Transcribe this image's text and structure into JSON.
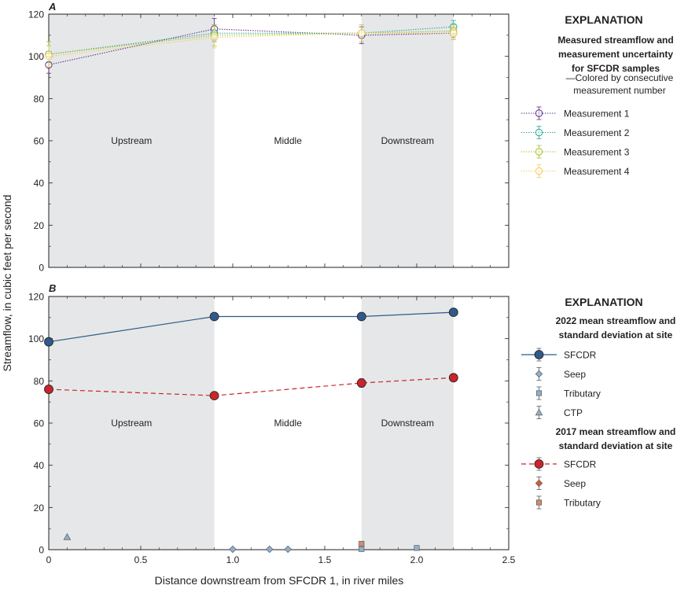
{
  "figure": {
    "ylabel": "Streamflow, in cubic feet per second",
    "xlabel": "Distance downstream from SFCDR 1, in river miles"
  },
  "colors": {
    "region_shade": "#e6e7e8",
    "m1": "#5b2c83",
    "m2": "#2aa698",
    "m3": "#a3be2d",
    "m4": "#f2cd5b",
    "sfcdr2022": "#2f5a8a",
    "seep2022": "#8fb0cc",
    "trib2022": "#8fb0cc",
    "ctp2022": "#8fb0cc",
    "sfcdr2017": "#c9252b",
    "seep2017": "#d35a3c",
    "trib2017": "#d38a6e"
  },
  "chart_data": [
    {
      "panel": "A",
      "type": "line",
      "xlim": [
        0,
        2.5
      ],
      "ylim": [
        0,
        120
      ],
      "xticks": [
        0,
        0.5,
        1.0,
        1.5,
        2.0,
        2.5
      ],
      "xtick_labels": [
        "",
        "",
        "",
        "",
        "",
        ""
      ],
      "yticks": [
        0,
        20,
        40,
        60,
        80,
        100,
        120
      ],
      "regions": [
        {
          "label": "Upstream",
          "x0": 0,
          "x1": 0.9,
          "shaded": true
        },
        {
          "label": "Middle",
          "x0": 0.9,
          "x1": 1.7,
          "shaded": false
        },
        {
          "label": "Downstream",
          "x0": 1.7,
          "x1": 2.2,
          "shaded": true
        }
      ],
      "series": [
        {
          "name": "Measurement 1",
          "color_key": "m1",
          "marker": "circle-open",
          "line": "dotted",
          "x": [
            0,
            0.9,
            1.7,
            2.2
          ],
          "y": [
            96,
            113,
            110,
            111
          ],
          "err": [
            4,
            5,
            4,
            3
          ]
        },
        {
          "name": "Measurement 2",
          "color_key": "m2",
          "marker": "circle-open",
          "line": "dotted",
          "x": [
            0,
            0.9,
            1.7,
            2.2
          ],
          "y": [
            101,
            111,
            111,
            114
          ],
          "err": [
            4,
            4,
            4,
            3
          ]
        },
        {
          "name": "Measurement 3",
          "color_key": "m3",
          "marker": "circle-open",
          "line": "dotted",
          "x": [
            0,
            0.9,
            1.7,
            2.2
          ],
          "y": [
            101,
            110,
            111,
            112
          ],
          "err": [
            6,
            5,
            4,
            3
          ]
        },
        {
          "name": "Measurement 4",
          "color_key": "m4",
          "marker": "circle-open",
          "line": "dotted",
          "x": [
            0,
            0.9,
            1.7,
            2.2
          ],
          "y": [
            100,
            109,
            111,
            111
          ],
          "err": [
            5,
            5,
            4,
            3
          ]
        }
      ],
      "legend": {
        "title": "EXPLANATION",
        "subtitle_lines": [
          "Measured streamflow and",
          "measurement uncertainty",
          "for SFCDR samples"
        ],
        "note_lines": [
          "—Colored by consecutive",
          "measurement number"
        ]
      }
    },
    {
      "panel": "B",
      "type": "line",
      "xlim": [
        0,
        2.5
      ],
      "ylim": [
        0,
        120
      ],
      "xticks": [
        0,
        0.5,
        1.0,
        1.5,
        2.0,
        2.5
      ],
      "xtick_labels": [
        "0",
        "0.5",
        "1.0",
        "1.5",
        "2.0",
        "2.5"
      ],
      "yticks": [
        0,
        20,
        40,
        60,
        80,
        100,
        120
      ],
      "regions": [
        {
          "label": "Upstream",
          "x0": 0,
          "x1": 0.9,
          "shaded": true
        },
        {
          "label": "Middle",
          "x0": 0.9,
          "x1": 1.7,
          "shaded": false
        },
        {
          "label": "Downstream",
          "x0": 1.7,
          "x1": 2.2,
          "shaded": true
        }
      ],
      "series": [
        {
          "name": "SFCDR",
          "group": "2022",
          "color_key": "sfcdr2022",
          "marker": "circle-filled",
          "line": "solid",
          "x": [
            0,
            0.9,
            1.7,
            2.2
          ],
          "y": [
            98.5,
            110.5,
            110.5,
            112.5
          ]
        },
        {
          "name": "Seep",
          "group": "2022",
          "color_key": "seep2022",
          "marker": "diamond",
          "line": "none",
          "x": [
            1.0,
            1.2,
            1.3
          ],
          "y": [
            0.2,
            0.2,
            0.2
          ]
        },
        {
          "name": "Tributary",
          "group": "2022",
          "color_key": "trib2022",
          "marker": "square",
          "line": "none",
          "x": [
            1.7,
            2.0
          ],
          "y": [
            0.3,
            0.8
          ]
        },
        {
          "name": "CTP",
          "group": "2022",
          "color_key": "ctp2022",
          "marker": "triangle",
          "line": "none",
          "x": [
            0.1
          ],
          "y": [
            6
          ]
        },
        {
          "name": "SFCDR",
          "group": "2017",
          "color_key": "sfcdr2017",
          "marker": "circle-filled",
          "line": "dashed",
          "x": [
            0,
            0.9,
            1.7,
            2.2
          ],
          "y": [
            76,
            73,
            79,
            81.5
          ],
          "err": [
            0,
            0,
            2,
            0
          ]
        },
        {
          "name": "Seep",
          "group": "2017",
          "color_key": "seep2017",
          "marker": "diamond",
          "line": "none",
          "x": [],
          "y": []
        },
        {
          "name": "Tributary",
          "group": "2017",
          "color_key": "trib2017",
          "marker": "square",
          "line": "none",
          "x": [
            1.7
          ],
          "y": [
            2.8
          ]
        }
      ],
      "legend": {
        "title": "EXPLANATION",
        "group2022_lines": [
          "2022 mean streamflow and",
          "standard deviation at site"
        ],
        "group2017_lines": [
          "2017 mean streamflow and",
          "standard deviation at site"
        ]
      }
    }
  ]
}
